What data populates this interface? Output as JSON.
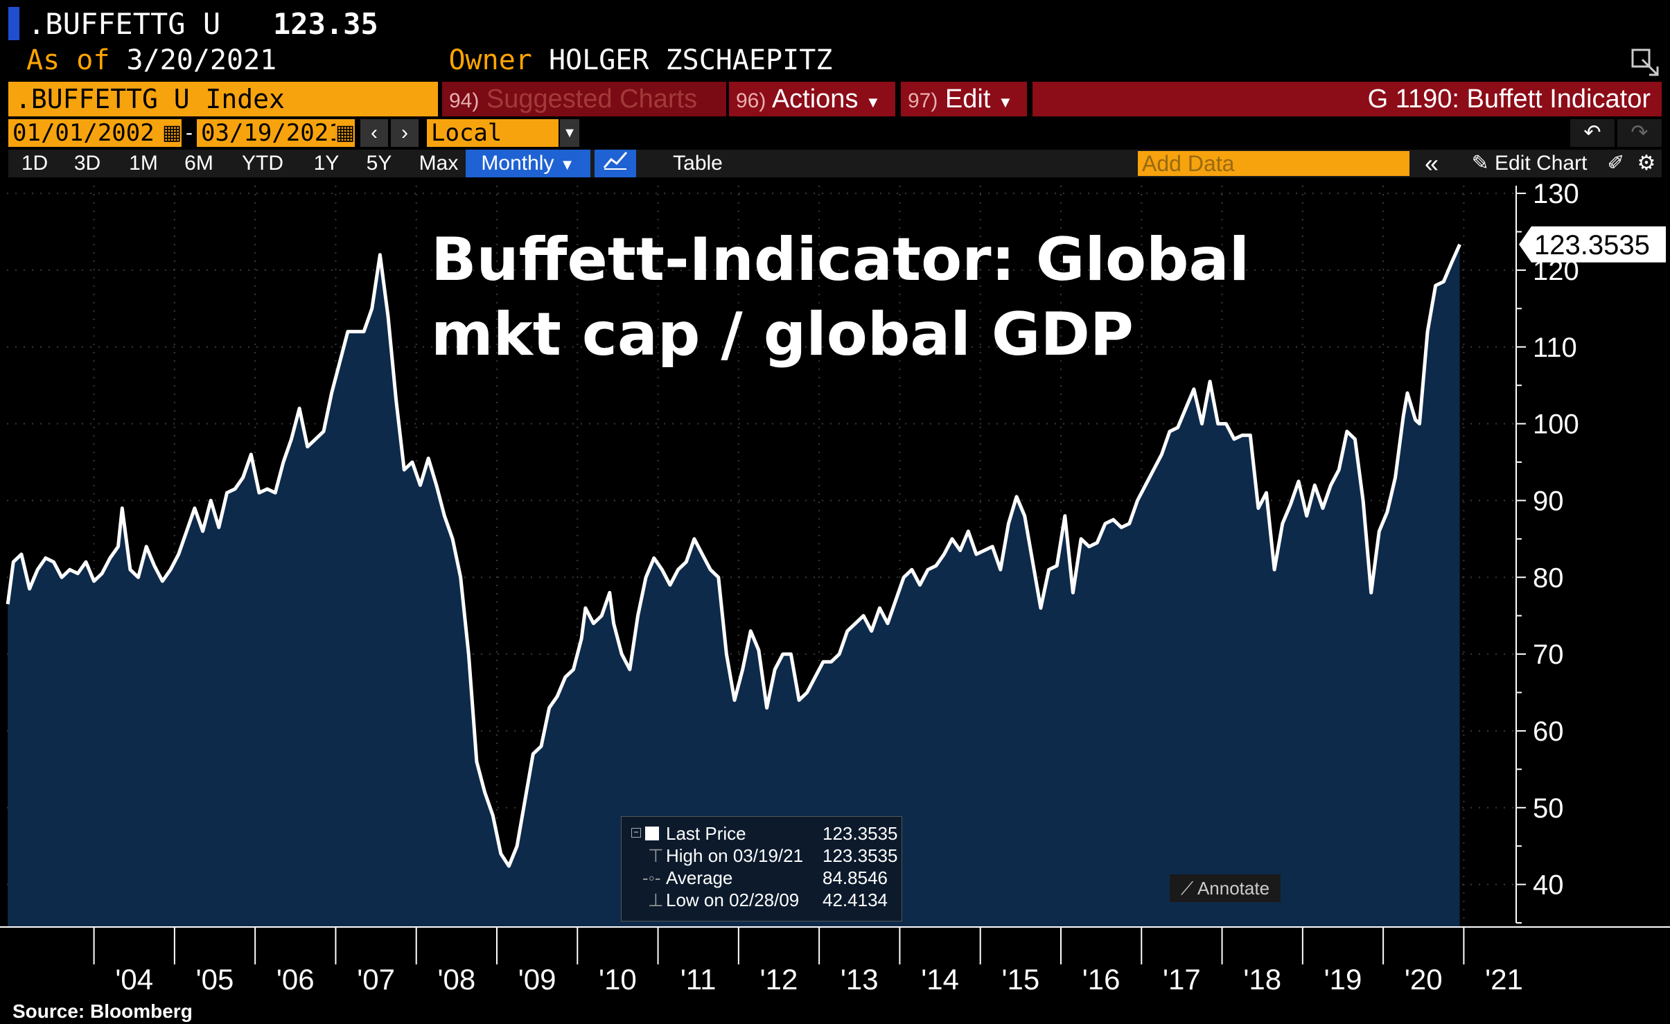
{
  "header": {
    "ticker": ".BUFFETTG U",
    "price": "123.35",
    "as_of_label": "As of",
    "as_of_date": "3/20/2021",
    "owner_label": "Owner",
    "owner_name": "HOLGER ZSCHAEPITZ"
  },
  "toolbar": {
    "security": ".BUFFETTG U Index",
    "suggested": "Suggested Charts",
    "suggested_num": "94)",
    "actions": "Actions",
    "actions_num": "96)",
    "edit": "Edit",
    "edit_num": "97)",
    "chart_id": "G 1190: Buffett Indicator",
    "start_date": "01/01/2002",
    "end_date": "03/19/2021",
    "currency": "Local CCY",
    "ranges": [
      "1D",
      "3D",
      "1M",
      "6M",
      "YTD",
      "1Y",
      "5Y",
      "Max"
    ],
    "frequency": "Monthly",
    "table_label": "Table",
    "add_data_placeholder": "Add Data",
    "edit_chart": "Edit Chart"
  },
  "chart_data": {
    "type": "area",
    "title_lines": [
      "Buffett-Indicator: Global",
      "mkt cap / global GDP"
    ],
    "ylim": [
      35,
      131
    ],
    "yticks": [
      40,
      50,
      60,
      70,
      80,
      90,
      100,
      110,
      120,
      130
    ],
    "xlim": [
      2002.92,
      2021.65
    ],
    "xticks": [
      {
        "label": "'04",
        "x": 2004
      },
      {
        "label": "'05",
        "x": 2005
      },
      {
        "label": "'06",
        "x": 2006
      },
      {
        "label": "'07",
        "x": 2007
      },
      {
        "label": "'08",
        "x": 2008
      },
      {
        "label": "'09",
        "x": 2009
      },
      {
        "label": "'10",
        "x": 2010
      },
      {
        "label": "'11",
        "x": 2011
      },
      {
        "label": "'12",
        "x": 2012
      },
      {
        "label": "'13",
        "x": 2013
      },
      {
        "label": "'14",
        "x": 2014
      },
      {
        "label": "'15",
        "x": 2015
      },
      {
        "label": "'16",
        "x": 2016
      },
      {
        "label": "'17",
        "x": 2017
      },
      {
        "label": "'18",
        "x": 2018
      },
      {
        "label": "'19",
        "x": 2019
      },
      {
        "label": "'20",
        "x": 2020
      },
      {
        "label": "'21",
        "x": 2021
      }
    ],
    "series": [
      {
        "points": [
          [
            2002.93,
            76.5
          ],
          [
            2003.0,
            82
          ],
          [
            2003.1,
            83
          ],
          [
            2003.2,
            78.5
          ],
          [
            2003.3,
            81
          ],
          [
            2003.4,
            82.5
          ],
          [
            2003.5,
            82
          ],
          [
            2003.6,
            80
          ],
          [
            2003.7,
            81
          ],
          [
            2003.8,
            80.5
          ],
          [
            2003.9,
            82
          ],
          [
            2004.0,
            79.5
          ],
          [
            2004.1,
            80.5
          ],
          [
            2004.2,
            82.5
          ],
          [
            2004.3,
            84
          ],
          [
            2004.35,
            89
          ],
          [
            2004.45,
            81
          ],
          [
            2004.55,
            80
          ],
          [
            2004.65,
            84
          ],
          [
            2004.75,
            81.5
          ],
          [
            2004.85,
            79.5
          ],
          [
            2004.95,
            81
          ],
          [
            2005.05,
            83
          ],
          [
            2005.15,
            86
          ],
          [
            2005.25,
            89
          ],
          [
            2005.35,
            86
          ],
          [
            2005.45,
            90
          ],
          [
            2005.55,
            86.5
          ],
          [
            2005.65,
            91
          ],
          [
            2005.75,
            91.5
          ],
          [
            2005.85,
            93
          ],
          [
            2005.95,
            96
          ],
          [
            2006.05,
            91
          ],
          [
            2006.15,
            91.5
          ],
          [
            2006.25,
            91
          ],
          [
            2006.35,
            95
          ],
          [
            2006.45,
            98
          ],
          [
            2006.55,
            102
          ],
          [
            2006.65,
            97
          ],
          [
            2006.75,
            98
          ],
          [
            2006.85,
            99
          ],
          [
            2006.95,
            104
          ],
          [
            2007.05,
            108
          ],
          [
            2007.15,
            112
          ],
          [
            2007.25,
            112
          ],
          [
            2007.35,
            112
          ],
          [
            2007.45,
            115
          ],
          [
            2007.55,
            122
          ],
          [
            2007.65,
            114
          ],
          [
            2007.75,
            103
          ],
          [
            2007.85,
            94
          ],
          [
            2007.95,
            95
          ],
          [
            2008.05,
            92
          ],
          [
            2008.15,
            95.5
          ],
          [
            2008.25,
            92
          ],
          [
            2008.35,
            88
          ],
          [
            2008.45,
            85
          ],
          [
            2008.55,
            80
          ],
          [
            2008.65,
            70
          ],
          [
            2008.75,
            56
          ],
          [
            2008.85,
            52
          ],
          [
            2008.95,
            49
          ],
          [
            2009.05,
            44
          ],
          [
            2009.15,
            42.4
          ],
          [
            2009.25,
            45
          ],
          [
            2009.35,
            51
          ],
          [
            2009.45,
            57
          ],
          [
            2009.55,
            58
          ],
          [
            2009.65,
            63
          ],
          [
            2009.75,
            64.5
          ],
          [
            2009.85,
            67
          ],
          [
            2009.95,
            68
          ],
          [
            2010.05,
            72
          ],
          [
            2010.1,
            76
          ],
          [
            2010.2,
            74
          ],
          [
            2010.3,
            75
          ],
          [
            2010.4,
            78
          ],
          [
            2010.45,
            74
          ],
          [
            2010.55,
            70
          ],
          [
            2010.65,
            68
          ],
          [
            2010.75,
            75
          ],
          [
            2010.85,
            80
          ],
          [
            2010.95,
            82.5
          ],
          [
            2011.05,
            81
          ],
          [
            2011.15,
            79
          ],
          [
            2011.25,
            81
          ],
          [
            2011.35,
            82
          ],
          [
            2011.45,
            85
          ],
          [
            2011.55,
            83
          ],
          [
            2011.65,
            81
          ],
          [
            2011.75,
            80
          ],
          [
            2011.85,
            70
          ],
          [
            2011.95,
            64
          ],
          [
            2012.05,
            68
          ],
          [
            2012.15,
            73
          ],
          [
            2012.25,
            70.5
          ],
          [
            2012.35,
            63
          ],
          [
            2012.45,
            68
          ],
          [
            2012.55,
            70
          ],
          [
            2012.65,
            70
          ],
          [
            2012.75,
            64
          ],
          [
            2012.85,
            65
          ],
          [
            2012.95,
            67
          ],
          [
            2013.05,
            69
          ],
          [
            2013.15,
            69
          ],
          [
            2013.25,
            70
          ],
          [
            2013.35,
            73
          ],
          [
            2013.45,
            74
          ],
          [
            2013.55,
            75
          ],
          [
            2013.65,
            73
          ],
          [
            2013.75,
            76
          ],
          [
            2013.85,
            74
          ],
          [
            2013.95,
            77
          ],
          [
            2014.05,
            80
          ],
          [
            2014.15,
            81
          ],
          [
            2014.25,
            79
          ],
          [
            2014.35,
            81
          ],
          [
            2014.45,
            81.5
          ],
          [
            2014.55,
            83
          ],
          [
            2014.65,
            85
          ],
          [
            2014.75,
            83.5
          ],
          [
            2014.85,
            86
          ],
          [
            2014.95,
            83
          ],
          [
            2015.05,
            83.5
          ],
          [
            2015.15,
            84
          ],
          [
            2015.25,
            81
          ],
          [
            2015.35,
            87
          ],
          [
            2015.45,
            90.5
          ],
          [
            2015.55,
            88
          ],
          [
            2015.65,
            82
          ],
          [
            2015.75,
            76
          ],
          [
            2015.85,
            81
          ],
          [
            2015.95,
            81.5
          ],
          [
            2016.05,
            88
          ],
          [
            2016.15,
            78
          ],
          [
            2016.25,
            85
          ],
          [
            2016.35,
            84
          ],
          [
            2016.45,
            84.5
          ],
          [
            2016.55,
            87
          ],
          [
            2016.65,
            87.5
          ],
          [
            2016.75,
            86.5
          ],
          [
            2016.85,
            87
          ],
          [
            2016.95,
            90
          ],
          [
            2017.05,
            92
          ],
          [
            2017.15,
            94
          ],
          [
            2017.25,
            96
          ],
          [
            2017.35,
            99
          ],
          [
            2017.45,
            99.5
          ],
          [
            2017.55,
            102
          ],
          [
            2017.65,
            104.5
          ],
          [
            2017.75,
            100
          ],
          [
            2017.85,
            105.5
          ],
          [
            2017.95,
            100
          ],
          [
            2018.05,
            100
          ],
          [
            2018.15,
            98
          ],
          [
            2018.25,
            98.5
          ],
          [
            2018.35,
            98.5
          ],
          [
            2018.45,
            89
          ],
          [
            2018.55,
            91
          ],
          [
            2018.65,
            81
          ],
          [
            2018.75,
            87
          ],
          [
            2018.85,
            89.5
          ],
          [
            2018.95,
            92.5
          ],
          [
            2019.05,
            88
          ],
          [
            2019.15,
            92
          ],
          [
            2019.25,
            89
          ],
          [
            2019.35,
            92
          ],
          [
            2019.45,
            94
          ],
          [
            2019.55,
            99
          ],
          [
            2019.65,
            98
          ],
          [
            2019.75,
            90
          ],
          [
            2019.85,
            78
          ],
          [
            2019.95,
            86
          ],
          [
            2020.05,
            88.5
          ],
          [
            2020.15,
            93
          ],
          [
            2020.25,
            101
          ],
          [
            2020.3,
            104
          ],
          [
            2020.4,
            100.5
          ],
          [
            2020.45,
            100
          ],
          [
            2020.55,
            112
          ],
          [
            2020.65,
            118
          ],
          [
            2020.75,
            118.5
          ],
          [
            2020.85,
            121
          ],
          [
            2020.95,
            123.35
          ]
        ]
      }
    ],
    "last_value": "123.3535",
    "legend": {
      "last_price_label": "Last Price",
      "last_price_value": "123.3535",
      "high_label": "High on 03/19/21",
      "high_value": "123.3535",
      "average_label": "Average",
      "average_value": "84.8546",
      "low_label": "Low on 02/28/09",
      "low_value": "42.4134"
    },
    "annotate_label": "Annotate",
    "source": "Source: Bloomberg",
    "colors": {
      "line": "#ffffff",
      "fill": "#0e2a4a",
      "background": "#000000"
    }
  }
}
